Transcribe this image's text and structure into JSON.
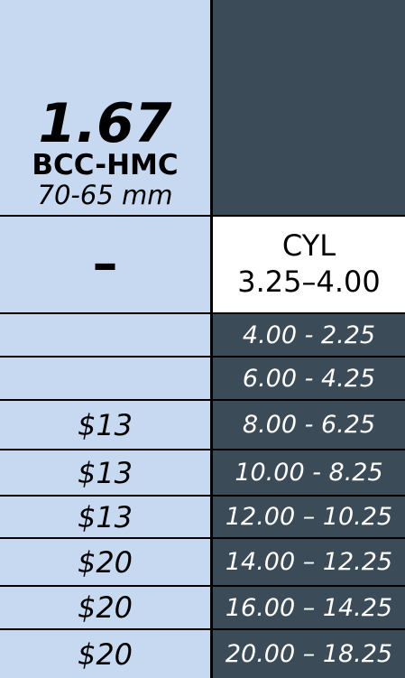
{
  "header": {
    "index": "1.67",
    "coating": "BCC-HMC",
    "diameter": "70-65 mm"
  },
  "subheader": {
    "sign": "–",
    "cyl_label": "CYL",
    "cyl_range": "3.25–4.00"
  },
  "rows": [
    {
      "price": "",
      "range": "4.00 - 2.25"
    },
    {
      "price": "",
      "range": "6.00 - 4.25"
    },
    {
      "price": "$13",
      "range": "8.00 - 6.25"
    },
    {
      "price": "$13",
      "range": "10.00 - 8.25"
    },
    {
      "price": "$13",
      "range": "12.00 – 10.25"
    },
    {
      "price": "$20",
      "range": "14.00 – 12.25"
    },
    {
      "price": "$20",
      "range": "16.00 – 14.25"
    },
    {
      "price": "$20",
      "range": "20.00 – 18.25"
    }
  ],
  "colors": {
    "left_bg": "#c6d9f0",
    "right_bg": "#3b4b57",
    "border": "#000000"
  }
}
